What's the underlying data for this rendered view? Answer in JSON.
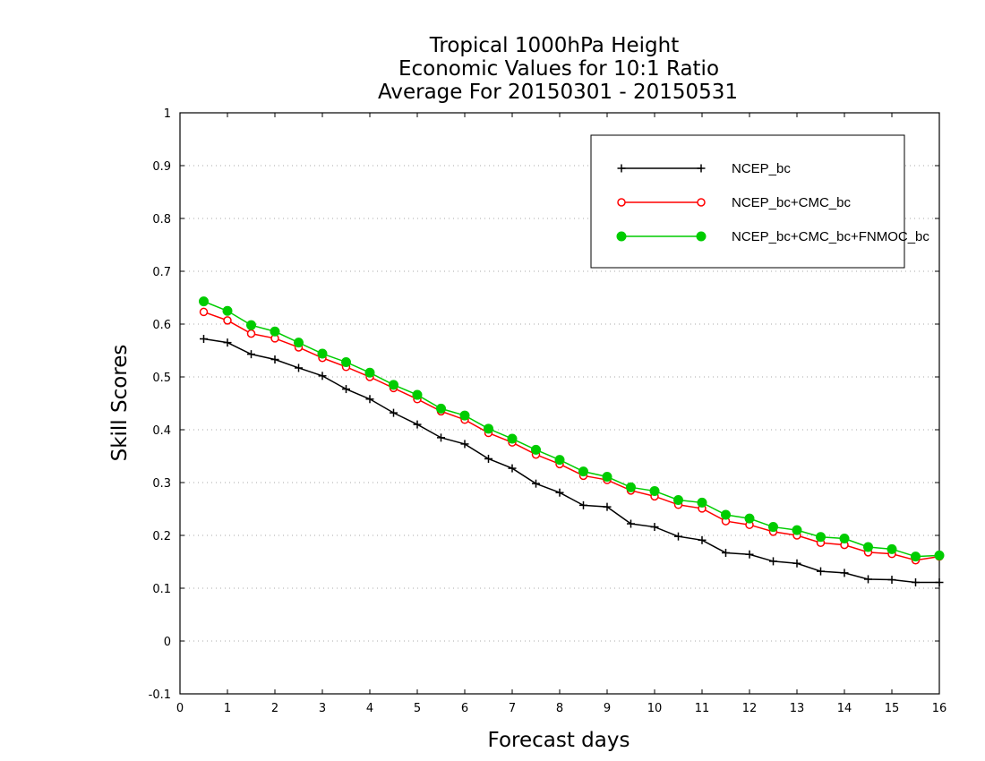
{
  "chart_data": {
    "type": "line",
    "title_lines": [
      "Tropical 1000hPa Height",
      "Economic Values for 10:1 Ratio",
      "Average For 20150301 - 20150531"
    ],
    "xlabel": "Forecast days",
    "ylabel": "Skill Scores",
    "xlim": [
      0,
      16
    ],
    "ylim": [
      -0.1,
      1
    ],
    "x_ticks": [
      0,
      1,
      2,
      3,
      4,
      5,
      6,
      7,
      8,
      9,
      10,
      11,
      12,
      13,
      14,
      15,
      16
    ],
    "y_ticks": [
      -0.1,
      0,
      0.1,
      0.2,
      0.3,
      0.4,
      0.5,
      0.6,
      0.7,
      0.8,
      0.9,
      1
    ],
    "y_tick_labels": [
      "-0.1",
      "0",
      "0.1",
      "0.2",
      "0.3",
      "0.4",
      "0.5",
      "0.6",
      "0.7",
      "0.8",
      "0.9",
      "1"
    ],
    "grid": "horizontal dotted",
    "legend_position": "top-right",
    "x": [
      0.5,
      1,
      1.5,
      2,
      2.5,
      3,
      3.5,
      4,
      4.5,
      5,
      5.5,
      6,
      6.5,
      7,
      7.5,
      8,
      8.5,
      9,
      9.5,
      10,
      10.5,
      11,
      11.5,
      12,
      12.5,
      13,
      13.5,
      14,
      14.5,
      15,
      15.5,
      16
    ],
    "series": [
      {
        "name": "NCEP_bc",
        "color": "#000000",
        "marker": "plus",
        "values": [
          0.572,
          0.565,
          0.543,
          0.533,
          0.517,
          0.502,
          0.477,
          0.458,
          0.432,
          0.41,
          0.385,
          0.373,
          0.345,
          0.327,
          0.298,
          0.281,
          0.257,
          0.254,
          0.222,
          0.216,
          0.198,
          0.191,
          0.167,
          0.164,
          0.151,
          0.147,
          0.132,
          0.129,
          0.117,
          0.116,
          0.111,
          0.111
        ]
      },
      {
        "name": "NCEP_bc+CMC_bc",
        "color": "#ff0000",
        "marker": "open-circle",
        "values": [
          0.623,
          0.607,
          0.582,
          0.573,
          0.556,
          0.536,
          0.519,
          0.5,
          0.479,
          0.458,
          0.435,
          0.419,
          0.394,
          0.376,
          0.353,
          0.335,
          0.313,
          0.305,
          0.285,
          0.274,
          0.258,
          0.251,
          0.227,
          0.22,
          0.207,
          0.2,
          0.186,
          0.182,
          0.168,
          0.165,
          0.153,
          0.16
        ]
      },
      {
        "name": "NCEP_bc+CMC_bc+FNMOC_bc",
        "color": "#00cc00",
        "marker": "filled-circle",
        "values": [
          0.643,
          0.625,
          0.598,
          0.586,
          0.565,
          0.544,
          0.528,
          0.508,
          0.485,
          0.466,
          0.44,
          0.427,
          0.402,
          0.383,
          0.362,
          0.343,
          0.321,
          0.311,
          0.291,
          0.284,
          0.267,
          0.262,
          0.239,
          0.232,
          0.216,
          0.21,
          0.197,
          0.194,
          0.178,
          0.174,
          0.16,
          0.162
        ]
      }
    ]
  }
}
